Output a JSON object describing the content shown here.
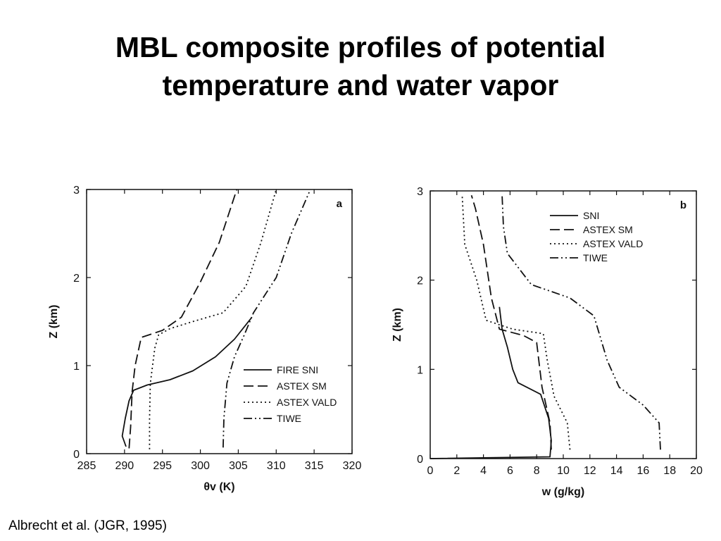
{
  "slide": {
    "title_line1": "MBL composite profiles of potential",
    "title_line2": "temperature and water vapor",
    "citation": "Albrecht et al. (JGR, 1995)"
  },
  "chart_data": [
    {
      "type": "line",
      "panel_label": "a",
      "xlabel": "θv (K)",
      "ylabel": "Z (km)",
      "xlim": [
        285,
        320
      ],
      "ylim": [
        0,
        3
      ],
      "xticks": [
        "285",
        "290",
        "295",
        "300",
        "305",
        "310",
        "315",
        "320"
      ],
      "yticks": [
        "0",
        "1",
        "2",
        "3"
      ],
      "legend_position": "lower-right",
      "series": [
        {
          "name": "FIRE SNI",
          "style": "solid",
          "points": [
            [
              290.2,
              0.08
            ],
            [
              289.7,
              0.2
            ],
            [
              290.1,
              0.4
            ],
            [
              290.6,
              0.6
            ],
            [
              291.2,
              0.72
            ],
            [
              293,
              0.78
            ],
            [
              296,
              0.84
            ],
            [
              299,
              0.94
            ],
            [
              302,
              1.1
            ],
            [
              304.5,
              1.3
            ],
            [
              306.8,
              1.55
            ]
          ]
        },
        {
          "name": "ASTEX SM",
          "style": "dashed",
          "points": [
            [
              290.6,
              0.06
            ],
            [
              290.8,
              0.3
            ],
            [
              291,
              0.7
            ],
            [
              291.4,
              1.0
            ],
            [
              292.2,
              1.32
            ],
            [
              295,
              1.4
            ],
            [
              297.5,
              1.55
            ],
            [
              300,
              1.95
            ],
            [
              302.5,
              2.4
            ],
            [
              304.8,
              3.0
            ]
          ]
        },
        {
          "name": "ASTEX VALD",
          "style": "dotted",
          "points": [
            [
              293.3,
              0.05
            ],
            [
              293.3,
              0.4
            ],
            [
              293.4,
              0.8
            ],
            [
              294,
              1.2
            ],
            [
              294.5,
              1.35
            ],
            [
              296,
              1.42
            ],
            [
              299,
              1.5
            ],
            [
              303,
              1.6
            ],
            [
              306,
              1.9
            ],
            [
              308,
              2.4
            ],
            [
              310,
              3.0
            ]
          ]
        },
        {
          "name": "TIWE",
          "style": "dashdot",
          "points": [
            [
              303,
              0.07
            ],
            [
              303.1,
              0.4
            ],
            [
              303.5,
              0.8
            ],
            [
              304.5,
              1.1
            ],
            [
              305.8,
              1.35
            ],
            [
              307,
              1.6
            ],
            [
              308.5,
              1.8
            ],
            [
              310,
              2.0
            ],
            [
              312,
              2.5
            ],
            [
              314.5,
              3.0
            ]
          ]
        }
      ]
    },
    {
      "type": "line",
      "panel_label": "b",
      "xlabel": "w (g/kg)",
      "ylabel": "Z (km)",
      "xlim": [
        0,
        20
      ],
      "ylim": [
        0,
        3
      ],
      "xticks": [
        "0",
        "2",
        "4",
        "6",
        "8",
        "10",
        "12",
        "14",
        "16",
        "18",
        "20"
      ],
      "yticks": [
        "0",
        "1",
        "2",
        "3"
      ],
      "legend_position": "top-right",
      "series": [
        {
          "name": "SNI",
          "style": "solid",
          "points": [
            [
              0,
              0.0
            ],
            [
              9.0,
              0.02
            ],
            [
              9.1,
              0.2
            ],
            [
              8.9,
              0.45
            ],
            [
              8.3,
              0.72
            ],
            [
              6.6,
              0.85
            ],
            [
              6.2,
              1.0
            ],
            [
              5.8,
              1.25
            ],
            [
              5.4,
              1.45
            ],
            [
              5.2,
              1.7
            ]
          ]
        },
        {
          "name": "ASTEX SM",
          "style": "dashed",
          "points": [
            [
              9.1,
              0.1
            ],
            [
              9.0,
              0.4
            ],
            [
              8.4,
              0.8
            ],
            [
              8.0,
              1.3
            ],
            [
              7.0,
              1.38
            ],
            [
              5.2,
              1.45
            ],
            [
              4.6,
              1.8
            ],
            [
              4.0,
              2.4
            ],
            [
              3.4,
              2.8
            ],
            [
              3.1,
              2.95
            ]
          ]
        },
        {
          "name": "ASTEX VALD",
          "style": "dotted",
          "points": [
            [
              10.5,
              0.1
            ],
            [
              10.3,
              0.4
            ],
            [
              9.3,
              0.7
            ],
            [
              8.8,
              1.1
            ],
            [
              8.5,
              1.4
            ],
            [
              6.2,
              1.45
            ],
            [
              4.2,
              1.55
            ],
            [
              3.5,
              2.0
            ],
            [
              2.6,
              2.4
            ],
            [
              2.4,
              2.95
            ]
          ]
        },
        {
          "name": "TIWE",
          "style": "dashdot",
          "points": [
            [
              17.3,
              0.1
            ],
            [
              17.2,
              0.4
            ],
            [
              16.0,
              0.6
            ],
            [
              14.2,
              0.8
            ],
            [
              13.3,
              1.1
            ],
            [
              12.3,
              1.6
            ],
            [
              10.5,
              1.8
            ],
            [
              7.6,
              1.95
            ],
            [
              5.8,
              2.3
            ],
            [
              5.5,
              2.6
            ],
            [
              5.4,
              2.95
            ]
          ]
        }
      ]
    }
  ]
}
